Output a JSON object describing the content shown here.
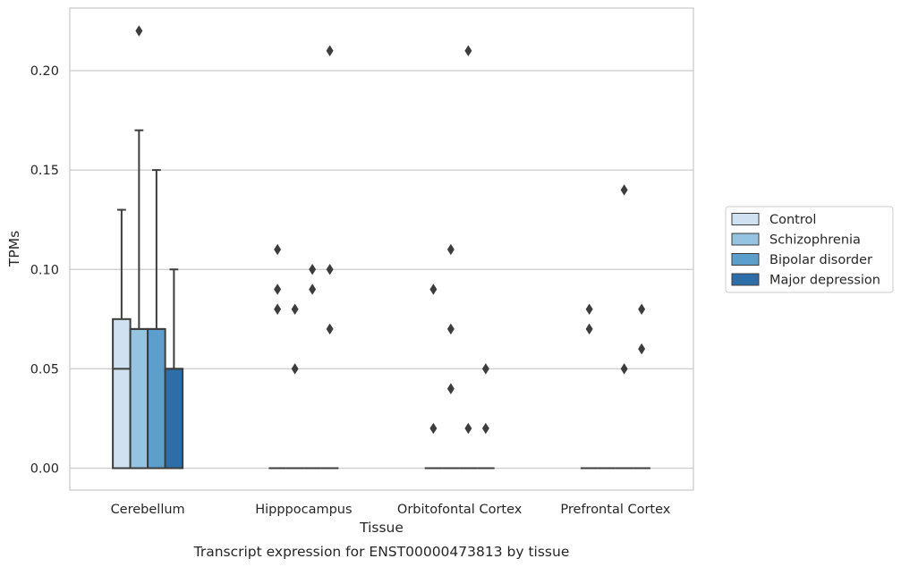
{
  "chart_data": {
    "type": "box",
    "xlabel": "Tissue",
    "ylabel": "TPMs",
    "caption": "Transcript expression for ENST00000473813 by tissue",
    "ylim": [
      -0.01,
      0.232
    ],
    "yticks": [
      0.0,
      0.05,
      0.1,
      0.15,
      0.2
    ],
    "ytick_labels": [
      "0.00",
      "0.05",
      "0.10",
      "0.15",
      "0.20"
    ],
    "grid": "horizontal",
    "legend_position": "right",
    "categories": [
      "Cerebellum",
      "Hipppocampus",
      "Orbitofontal Cortex",
      "Prefrontal Cortex"
    ],
    "series": [
      {
        "name": "Control",
        "color": "#d0e1f2",
        "boxes": [
          {
            "q1": 0.0,
            "median": 0.05,
            "q3": 0.075,
            "whisker_low": 0.0,
            "whisker_high": 0.13,
            "outliers": []
          },
          {
            "q1": 0.0,
            "median": 0.0,
            "q3": 0.0,
            "whisker_low": 0.0,
            "whisker_high": 0.0,
            "outliers": [
              0.11,
              0.09,
              0.08
            ]
          },
          {
            "q1": 0.0,
            "median": 0.0,
            "q3": 0.0,
            "whisker_low": 0.0,
            "whisker_high": 0.0,
            "outliers": [
              0.09,
              0.02
            ]
          },
          {
            "q1": 0.0,
            "median": 0.0,
            "q3": 0.0,
            "whisker_low": 0.0,
            "whisker_high": 0.0,
            "outliers": [
              0.08,
              0.07
            ]
          }
        ]
      },
      {
        "name": "Schizophrenia",
        "color": "#94c4df",
        "boxes": [
          {
            "q1": 0.0,
            "median": 0.07,
            "q3": 0.07,
            "whisker_low": 0.0,
            "whisker_high": 0.17,
            "outliers": [
              0.22
            ]
          },
          {
            "q1": 0.0,
            "median": 0.0,
            "q3": 0.0,
            "whisker_low": 0.0,
            "whisker_high": 0.0,
            "outliers": [
              0.08,
              0.05
            ]
          },
          {
            "q1": 0.0,
            "median": 0.0,
            "q3": 0.0,
            "whisker_low": 0.0,
            "whisker_high": 0.0,
            "outliers": [
              0.11,
              0.07,
              0.04
            ]
          },
          {
            "q1": 0.0,
            "median": 0.0,
            "q3": 0.0,
            "whisker_low": 0.0,
            "whisker_high": 0.0,
            "outliers": []
          }
        ]
      },
      {
        "name": "Bipolar disorder",
        "color": "#5c9fcc",
        "boxes": [
          {
            "q1": 0.0,
            "median": 0.07,
            "q3": 0.07,
            "whisker_low": 0.0,
            "whisker_high": 0.15,
            "outliers": []
          },
          {
            "q1": 0.0,
            "median": 0.0,
            "q3": 0.0,
            "whisker_low": 0.0,
            "whisker_high": 0.0,
            "outliers": [
              0.1,
              0.09
            ]
          },
          {
            "q1": 0.0,
            "median": 0.0,
            "q3": 0.0,
            "whisker_low": 0.0,
            "whisker_high": 0.0,
            "outliers": [
              0.21,
              0.02
            ]
          },
          {
            "q1": 0.0,
            "median": 0.0,
            "q3": 0.0,
            "whisker_low": 0.0,
            "whisker_high": 0.0,
            "outliers": [
              0.14,
              0.05
            ]
          }
        ]
      },
      {
        "name": "Major depression",
        "color": "#2d6ea9",
        "boxes": [
          {
            "q1": 0.0,
            "median": 0.05,
            "q3": 0.05,
            "whisker_low": 0.0,
            "whisker_high": 0.1,
            "outliers": []
          },
          {
            "q1": 0.0,
            "median": 0.0,
            "q3": 0.0,
            "whisker_low": 0.0,
            "whisker_high": 0.0,
            "outliers": [
              0.21,
              0.1,
              0.07
            ]
          },
          {
            "q1": 0.0,
            "median": 0.0,
            "q3": 0.0,
            "whisker_low": 0.0,
            "whisker_high": 0.0,
            "outliers": [
              0.05,
              0.02
            ]
          },
          {
            "q1": 0.0,
            "median": 0.0,
            "q3": 0.0,
            "whisker_low": 0.0,
            "whisker_high": 0.0,
            "outliers": [
              0.08,
              0.06
            ]
          }
        ]
      }
    ]
  }
}
